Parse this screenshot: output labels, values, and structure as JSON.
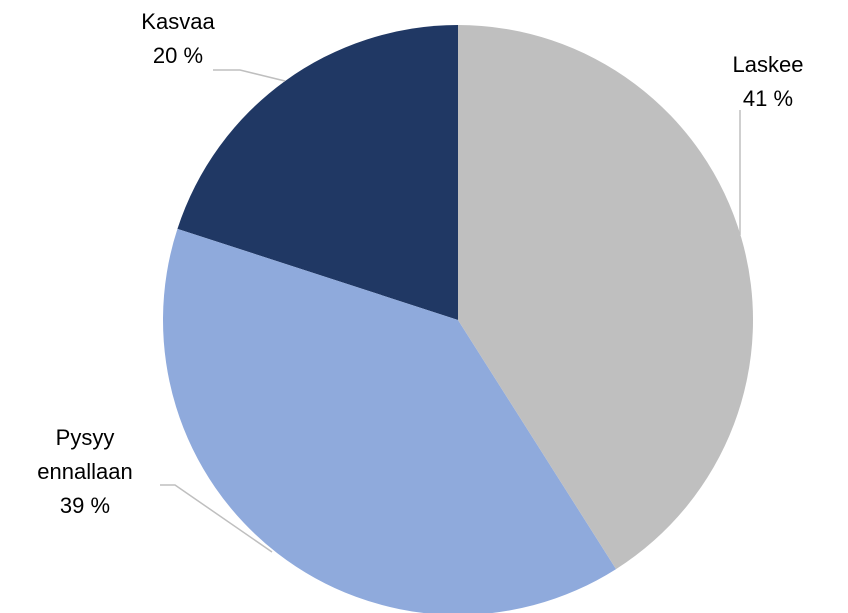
{
  "chart_data": {
    "type": "pie",
    "categories": [
      "Laskee",
      "Pysyy ennallaan",
      "Kasvaa"
    ],
    "values": [
      41,
      39,
      20
    ],
    "value_labels": [
      "41 %",
      "39 %",
      "20 %"
    ],
    "colors": [
      "#bfbfbf",
      "#8faadc",
      "#203864"
    ]
  }
}
